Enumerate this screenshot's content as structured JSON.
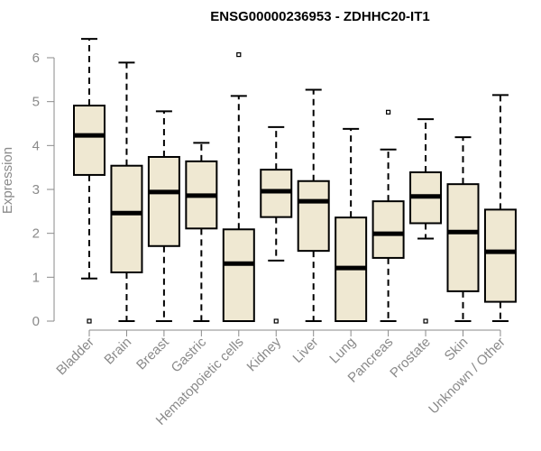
{
  "chart_data": {
    "type": "boxplot",
    "title": "ENSG00000236953 - ZDHHC20-IT1",
    "xlabel": "",
    "ylabel": "Expression",
    "ylim": [
      0,
      6.6
    ],
    "yticks": [
      0,
      1,
      2,
      3,
      4,
      5,
      6
    ],
    "grid": false,
    "colors": {
      "box_fill": "#efe8d2",
      "box_stroke": "#000000",
      "axis": "#8a8a8a",
      "median": "#000000"
    },
    "categories": [
      "Bladder",
      "Brain",
      "Breast",
      "Gastric",
      "Hematopoietic cells",
      "Kidney",
      "Liver",
      "Lung",
      "Pancreas",
      "Prostate",
      "Skin",
      "Unknown / Other"
    ],
    "boxes": [
      {
        "category": "Bladder",
        "whisker_low": 0.97,
        "q1": 3.33,
        "median": 4.23,
        "q3": 4.91,
        "whisker_high": 6.43,
        "outliers": [
          0
        ]
      },
      {
        "category": "Brain",
        "whisker_low": 0,
        "q1": 1.11,
        "median": 2.46,
        "q3": 3.54,
        "whisker_high": 5.89,
        "outliers": []
      },
      {
        "category": "Breast",
        "whisker_low": 0,
        "q1": 1.71,
        "median": 2.94,
        "q3": 3.74,
        "whisker_high": 4.78,
        "outliers": []
      },
      {
        "category": "Gastric",
        "whisker_low": 0,
        "q1": 2.11,
        "median": 2.86,
        "q3": 3.64,
        "whisker_high": 4.06,
        "outliers": []
      },
      {
        "category": "Hematopoietic cells",
        "whisker_low": 0,
        "q1": 0,
        "median": 1.31,
        "q3": 2.09,
        "whisker_high": 5.13,
        "outliers": [
          6.07
        ]
      },
      {
        "category": "Kidney",
        "whisker_low": 1.38,
        "q1": 2.37,
        "median": 2.96,
        "q3": 3.45,
        "whisker_high": 4.42,
        "outliers": [
          0
        ]
      },
      {
        "category": "Liver",
        "whisker_low": 0,
        "q1": 1.6,
        "median": 2.73,
        "q3": 3.19,
        "whisker_high": 5.27,
        "outliers": []
      },
      {
        "category": "Lung",
        "whisker_low": 0,
        "q1": 0,
        "median": 1.21,
        "q3": 2.36,
        "whisker_high": 4.38,
        "outliers": []
      },
      {
        "category": "Pancreas",
        "whisker_low": 0,
        "q1": 1.44,
        "median": 1.99,
        "q3": 2.73,
        "whisker_high": 3.91,
        "outliers": [
          4.76
        ]
      },
      {
        "category": "Prostate",
        "whisker_low": 1.88,
        "q1": 2.23,
        "median": 2.84,
        "q3": 3.39,
        "whisker_high": 4.6,
        "outliers": [
          0
        ]
      },
      {
        "category": "Skin",
        "whisker_low": 0,
        "q1": 0.68,
        "median": 2.03,
        "q3": 3.12,
        "whisker_high": 4.19,
        "outliers": []
      },
      {
        "category": "Unknown / Other",
        "whisker_low": 0,
        "q1": 0.44,
        "median": 1.58,
        "q3": 2.54,
        "whisker_high": 5.15,
        "outliers": []
      }
    ]
  }
}
